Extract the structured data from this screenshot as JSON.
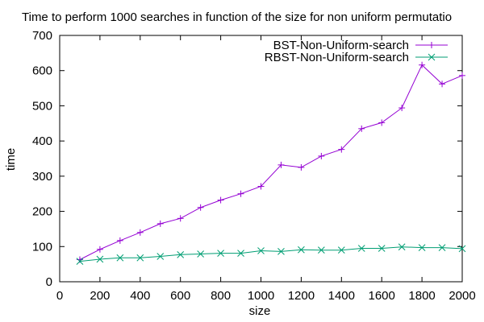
{
  "chart_data": {
    "type": "line",
    "title": "Time to perform 1000 searches in function of the size for non uniform permutatio",
    "xlabel": "size",
    "ylabel": "time",
    "xlim": [
      0,
      2000
    ],
    "ylim": [
      0,
      700
    ],
    "xticks": [
      0,
      200,
      400,
      600,
      800,
      1000,
      1200,
      1400,
      1600,
      1800,
      2000
    ],
    "yticks": [
      0,
      100,
      200,
      300,
      400,
      500,
      600,
      700
    ],
    "grid": false,
    "legend_position": "top-right",
    "x": [
      100,
      200,
      300,
      400,
      500,
      600,
      700,
      800,
      900,
      1000,
      1100,
      1200,
      1300,
      1400,
      1500,
      1600,
      1700,
      1800,
      1900,
      2000
    ],
    "series": [
      {
        "name": "BST-Non-Uniform-search",
        "color": "#9400d3",
        "marker": "plus",
        "values": [
          63,
          92,
          117,
          140,
          165,
          180,
          211,
          232,
          250,
          271,
          332,
          325,
          357,
          376,
          435,
          452,
          494,
          616,
          562,
          586
        ]
      },
      {
        "name": "RBST-Non-Uniform-search",
        "color": "#009e73",
        "marker": "cross",
        "values": [
          58,
          64,
          68,
          68,
          72,
          77,
          79,
          81,
          81,
          88,
          86,
          91,
          90,
          90,
          95,
          95,
          99,
          97,
          97,
          94
        ]
      }
    ]
  }
}
